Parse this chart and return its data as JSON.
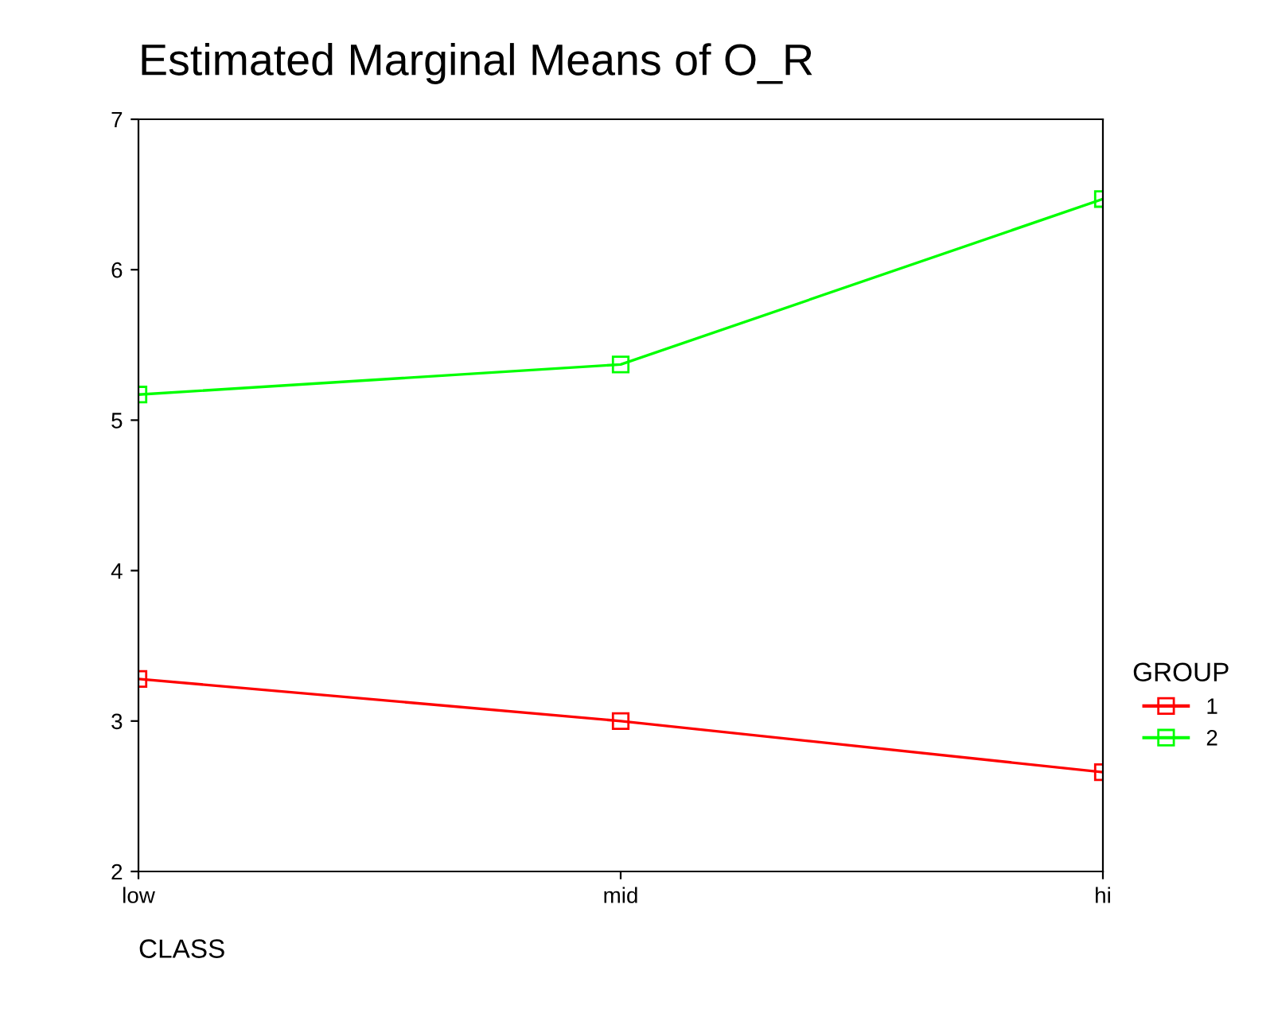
{
  "chart_data": {
    "type": "line",
    "title": "Estimated Marginal Means of O_R",
    "xlabel": "CLASS",
    "legend_title": "GROUP",
    "categories": [
      "low",
      "mid",
      "hi"
    ],
    "series": [
      {
        "name": "1",
        "color": "#ff0000",
        "values": [
          3.28,
          3.0,
          2.66
        ]
      },
      {
        "name": "2",
        "color": "#00ff00",
        "values": [
          5.17,
          5.37,
          6.47
        ]
      }
    ],
    "ylim": [
      2,
      7
    ],
    "yticks": [
      2,
      3,
      4,
      5,
      6,
      7
    ],
    "grid": false,
    "legend": "right",
    "marker": "square",
    "line_style": "solid"
  }
}
